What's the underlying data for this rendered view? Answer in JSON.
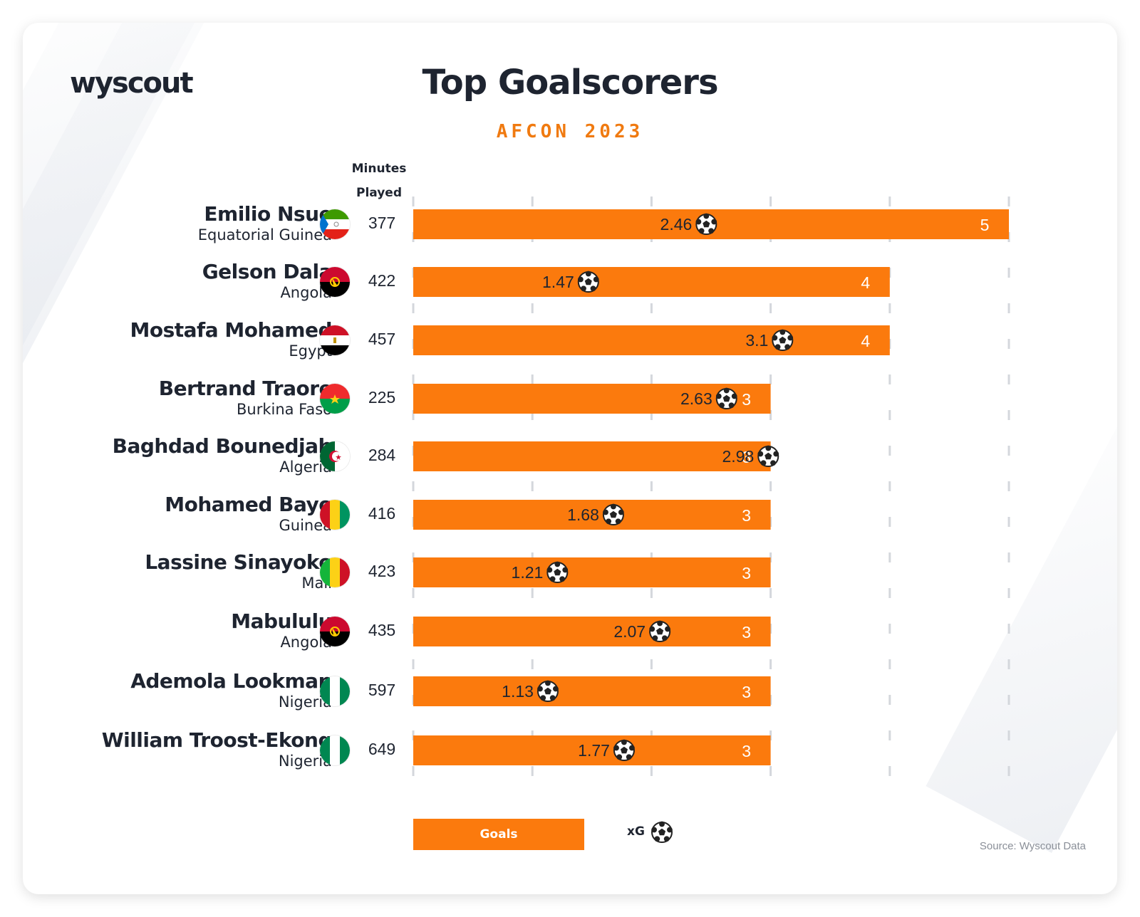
{
  "brand": {
    "logo_text": "wyscout"
  },
  "header": {
    "title": "Top Goalscorers",
    "subtitle": "AFCON 2023"
  },
  "columns": {
    "minutes_header_line1": "Minutes",
    "minutes_header_line2": "Played"
  },
  "legend": {
    "goals_label": "Goals",
    "xg_label": "xG"
  },
  "footer": {
    "source": "Source: Wyscout Data"
  },
  "colors": {
    "bar": "#fb7a0d",
    "title": "#1e2430",
    "subtitle": "#f07a10",
    "grid": "#d4d7dc"
  },
  "chart_data": {
    "type": "bar",
    "orientation": "horizontal",
    "title": "Top Goalscorers",
    "subtitle": "AFCON 2023",
    "xlim": [
      0,
      5
    ],
    "grid": true,
    "categories": [
      "Emilio Nsue",
      "Gelson Dala",
      "Mostafa Mohamed",
      "Bertrand Traore",
      "Baghdad Bounedjah",
      "Mohamed Bayo",
      "Lassine Sinayoko",
      "Mabululu",
      "Ademola Lookman",
      "William Troost-Ekong"
    ],
    "rows": [
      {
        "player": "Emilio Nsue",
        "country": "Equatorial Guinea",
        "flag": "equatorial-guinea-flag-icon",
        "minutes": 377,
        "goals": 5,
        "xg": 2.46
      },
      {
        "player": "Gelson Dala",
        "country": "Angola",
        "flag": "angola-flag-icon",
        "minutes": 422,
        "goals": 4,
        "xg": 1.47
      },
      {
        "player": "Mostafa Mohamed",
        "country": "Egypt",
        "flag": "egypt-flag-icon",
        "minutes": 457,
        "goals": 4,
        "xg": 3.1
      },
      {
        "player": "Bertrand Traore",
        "country": "Burkina Faso",
        "flag": "burkina-faso-flag-icon",
        "minutes": 225,
        "goals": 3,
        "xg": 2.63
      },
      {
        "player": "Baghdad Bounedjah",
        "country": "Algeria",
        "flag": "algeria-flag-icon",
        "minutes": 284,
        "goals": 3,
        "xg": 2.98
      },
      {
        "player": "Mohamed Bayo",
        "country": "Guinea",
        "flag": "guinea-flag-icon",
        "minutes": 416,
        "goals": 3,
        "xg": 1.68
      },
      {
        "player": "Lassine Sinayoko",
        "country": "Mali",
        "flag": "mali-flag-icon",
        "minutes": 423,
        "goals": 3,
        "xg": 1.21
      },
      {
        "player": "Mabululu",
        "country": "Angola",
        "flag": "angola-flag-icon",
        "minutes": 435,
        "goals": 3,
        "xg": 2.07
      },
      {
        "player": "Ademola Lookman",
        "country": "Nigeria",
        "flag": "nigeria-flag-icon",
        "minutes": 597,
        "goals": 3,
        "xg": 1.13
      },
      {
        "player": "William Troost-Ekong",
        "country": "Nigeria",
        "flag": "nigeria-flag-icon",
        "minutes": 649,
        "goals": 3,
        "xg": 1.77
      }
    ],
    "series": [
      {
        "name": "Goals",
        "values": [
          5,
          4,
          4,
          3,
          3,
          3,
          3,
          3,
          3,
          3
        ]
      },
      {
        "name": "xG",
        "values": [
          2.46,
          1.47,
          3.1,
          2.63,
          2.98,
          1.68,
          1.21,
          2.07,
          1.13,
          1.77
        ]
      }
    ]
  }
}
